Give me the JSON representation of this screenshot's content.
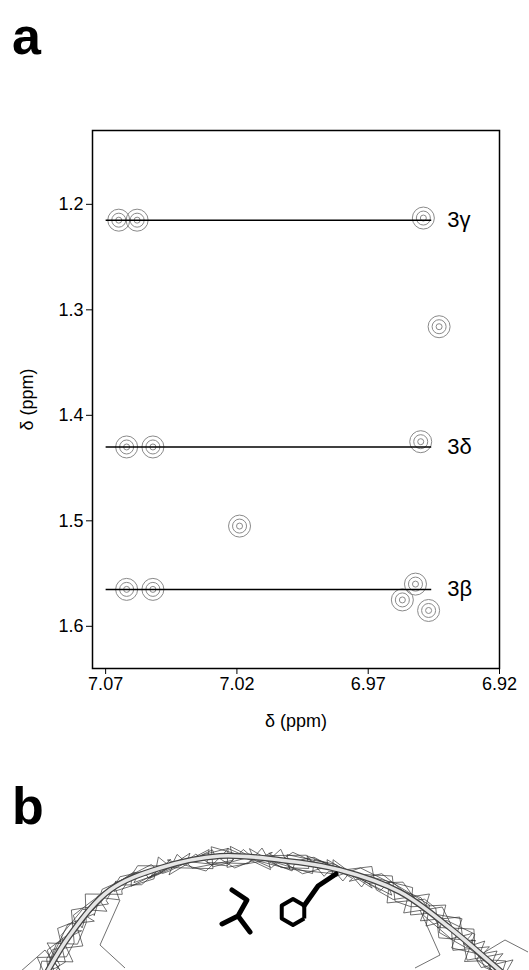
{
  "chart_data": {
    "type": "scatter",
    "panel_label": "a",
    "x_label": "δ (ppm)",
    "y_label": "δ (ppm)",
    "xlim": [
      7.075,
      6.92
    ],
    "xticks": [
      7.07,
      7.02,
      6.97,
      6.92
    ],
    "ylim": [
      1.64,
      1.13
    ],
    "yticks": [
      1.2,
      1.3,
      1.4,
      1.5,
      1.6
    ],
    "x": [
      7.065,
      7.058,
      6.949,
      6.943,
      7.062,
      7.052,
      6.95,
      7.019,
      7.062,
      7.052,
      6.952,
      6.947,
      6.957
    ],
    "values": [
      1.215,
      1.215,
      1.213,
      1.316,
      1.43,
      1.43,
      1.425,
      1.505,
      1.565,
      1.565,
      1.56,
      1.585,
      1.575
    ],
    "annotations": [
      {
        "text": "3γ",
        "y": 1.215,
        "x": [
          7.07,
          6.946
        ]
      },
      {
        "text": "3δ",
        "y": 1.43,
        "x": [
          7.07,
          6.946
        ]
      },
      {
        "text": "3β",
        "y": 1.565,
        "x": [
          7.07,
          6.946
        ]
      }
    ]
  },
  "structure_panel": {
    "panel_label": "b"
  }
}
